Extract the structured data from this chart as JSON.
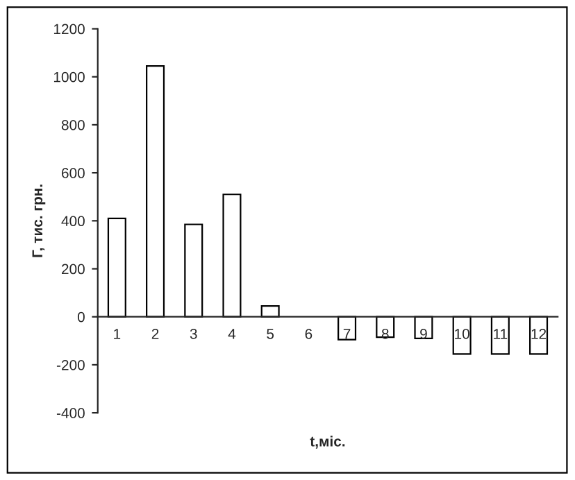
{
  "chart_data": {
    "type": "bar",
    "xlabel": "t,міс.",
    "ylabel": "Г, тис. грн.",
    "categories": [
      "1",
      "2",
      "3",
      "4",
      "5",
      "6",
      "7",
      "8",
      "9",
      "10",
      "11",
      "12"
    ],
    "values": [
      410,
      1045,
      385,
      510,
      45,
      0,
      -95,
      -85,
      -90,
      -155,
      -155,
      -155
    ],
    "color": "#ffffff",
    "ylim": [
      -400,
      1200
    ],
    "yticks": [
      -400,
      -200,
      0,
      200,
      400,
      600,
      800,
      1000,
      1200
    ],
    "grid": false,
    "legend": false
  }
}
